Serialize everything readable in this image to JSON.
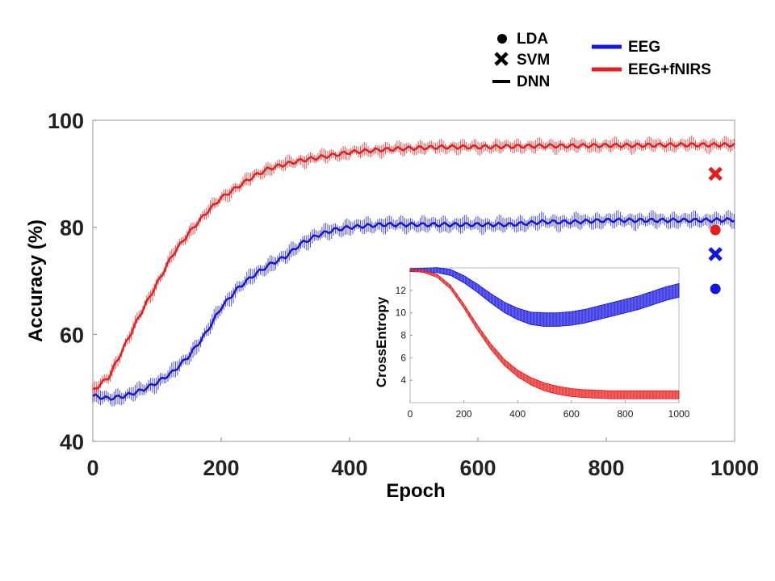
{
  "chart_data": [
    {
      "type": "line",
      "title": "",
      "xlabel": "Epoch",
      "ylabel": "Accuracy  (%)",
      "xlim": [
        0,
        1000
      ],
      "ylim": [
        40,
        100
      ],
      "xticks": [
        "0",
        "200",
        "400",
        "600",
        "800",
        "1000"
      ],
      "yticks": [
        "40",
        "60",
        "80",
        "100"
      ],
      "grid": false,
      "legend": {
        "placement": "top-right (outside plot)",
        "markers": [
          {
            "label": "LDA",
            "marker": "circle"
          },
          {
            "label": "SVM",
            "marker": "x"
          },
          {
            "label": "DNN",
            "marker": "line"
          }
        ],
        "colors": [
          {
            "label": "EEG",
            "color": "#1515e0"
          },
          {
            "label": "EEG+fNIRS",
            "color": "#e81c1c"
          }
        ]
      },
      "series": [
        {
          "name": "EEG",
          "method": "DNN",
          "color": "#1515e0",
          "x": [
            0,
            25,
            50,
            75,
            100,
            125,
            150,
            175,
            200,
            225,
            250,
            275,
            300,
            325,
            350,
            375,
            400,
            450,
            500,
            550,
            600,
            650,
            700,
            750,
            800,
            850,
            900,
            950,
            1000
          ],
          "y": [
            48.5,
            48,
            48.5,
            49.5,
            51,
            53,
            56,
            60,
            65,
            68.5,
            71,
            73,
            74.5,
            77,
            78.5,
            79.5,
            80,
            80.5,
            80.5,
            80.5,
            80.5,
            80.5,
            81,
            81,
            81.3,
            81.3,
            81.3,
            81.3,
            81.4
          ],
          "error": 1.2
        },
        {
          "name": "EEG+fNIRS",
          "method": "DNN",
          "color": "#e81c1c",
          "x": [
            0,
            25,
            50,
            75,
            100,
            125,
            150,
            175,
            200,
            225,
            250,
            275,
            300,
            325,
            350,
            375,
            400,
            450,
            500,
            550,
            600,
            650,
            700,
            750,
            800,
            850,
            900,
            950,
            1000
          ],
          "y": [
            49.5,
            52,
            58,
            64,
            69.5,
            75,
            79,
            82.5,
            85.5,
            87.5,
            89.5,
            91,
            91.8,
            92.5,
            93,
            93.5,
            94,
            94.5,
            94.8,
            95,
            95,
            95.1,
            95.2,
            95.2,
            95.3,
            95.3,
            95.4,
            95.4,
            95.4
          ],
          "error": 1.0
        },
        {
          "name": "EEG+fNIRS",
          "method": "SVM",
          "color": "#e81c1c",
          "marker": "x",
          "x": [
            970
          ],
          "y": [
            90
          ]
        },
        {
          "name": "EEG+fNIRS",
          "method": "LDA",
          "color": "#e81c1c",
          "marker": "circle",
          "x": [
            970
          ],
          "y": [
            79.5
          ]
        },
        {
          "name": "EEG",
          "method": "SVM",
          "color": "#1515e0",
          "marker": "x",
          "x": [
            970
          ],
          "y": [
            75
          ]
        },
        {
          "name": "EEG",
          "method": "LDA",
          "color": "#1515e0",
          "marker": "circle",
          "x": [
            970
          ],
          "y": [
            68.5
          ]
        }
      ]
    },
    {
      "type": "line",
      "title": "",
      "xlabel": "",
      "ylabel": "CrossEntropy",
      "xlim": [
        0,
        1000
      ],
      "ylim": [
        2,
        14
      ],
      "xticks": [
        "0",
        "200",
        "400",
        "600",
        "800",
        "1000"
      ],
      "yticks": [
        "4",
        "6",
        "8",
        "10",
        "12"
      ],
      "grid": false,
      "series": [
        {
          "name": "EEG",
          "color": "#1515e0",
          "x": [
            0,
            100,
            150,
            200,
            250,
            300,
            350,
            400,
            450,
            500,
            550,
            600,
            650,
            700,
            750,
            800,
            850,
            900,
            950,
            1000
          ],
          "y": [
            13.8,
            13.8,
            13.6,
            13.0,
            12.2,
            11.3,
            10.5,
            9.9,
            9.5,
            9.4,
            9.4,
            9.5,
            9.7,
            10.0,
            10.3,
            10.6,
            10.9,
            11.3,
            11.7,
            12.0
          ],
          "band": 0.6
        },
        {
          "name": "EEG+fNIRS",
          "color": "#e81c1c",
          "x": [
            0,
            50,
            100,
            150,
            200,
            250,
            300,
            350,
            400,
            450,
            500,
            550,
            600,
            650,
            700,
            750,
            800,
            850,
            900,
            950,
            1000
          ],
          "y": [
            13.8,
            13.7,
            13.3,
            12.3,
            10.6,
            8.7,
            7.0,
            5.6,
            4.6,
            3.9,
            3.4,
            3.1,
            2.9,
            2.8,
            2.75,
            2.7,
            2.7,
            2.7,
            2.7,
            2.7,
            2.7
          ],
          "band": 0.35
        }
      ]
    }
  ]
}
